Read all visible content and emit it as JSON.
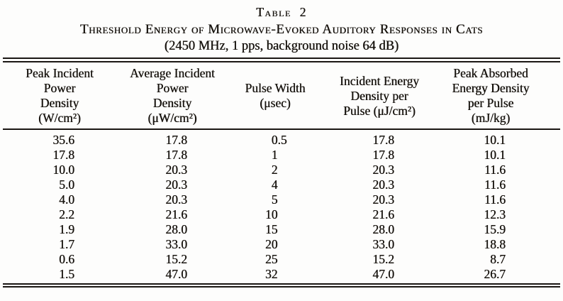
{
  "caption": {
    "label": "Table 2",
    "title": "Threshold Energy of Microwave-Evoked Auditory Responses in Cats",
    "conditions": "(2450 MHz, 1 pps, background noise 64 dB)"
  },
  "table": {
    "columns": [
      {
        "name": "peak-incident-power-density",
        "lines": [
          "Peak Incident",
          "Power",
          "Density",
          "(W/cm²)"
        ]
      },
      {
        "name": "average-incident-power-density",
        "lines": [
          "Average Incident",
          "Power",
          "Density",
          "(μW/cm²)"
        ]
      },
      {
        "name": "pulse-width",
        "lines": [
          "Pulse Width",
          "(μsec)"
        ]
      },
      {
        "name": "incident-energy-density-per-pulse",
        "lines": [
          "Incident Energy",
          "Density per",
          "Pulse (μJ/cm²)"
        ]
      },
      {
        "name": "peak-absorbed-energy-density-per-pulse",
        "lines": [
          "Peak Absorbed",
          "Energy Density",
          "per Pulse",
          "(mJ/kg)"
        ]
      }
    ],
    "rows": [
      [
        "35.6",
        "17.8",
        "0.5",
        "17.8",
        "10.1"
      ],
      [
        "17.8",
        "17.8",
        "1",
        "17.8",
        "10.1"
      ],
      [
        "10.0",
        "20.3",
        "2",
        "20.3",
        "11.6"
      ],
      [
        "5.0",
        "20.3",
        "4",
        "20.3",
        "11.6"
      ],
      [
        "4.0",
        "20.3",
        "5",
        "20.3",
        "11.6"
      ],
      [
        "2.2",
        "21.6",
        "10",
        "21.6",
        "12.3"
      ],
      [
        "1.9",
        "28.0",
        "15",
        "28.0",
        "15.9"
      ],
      [
        "1.7",
        "33.0",
        "20",
        "33.0",
        "18.8"
      ],
      [
        "0.6",
        "15.2",
        "25",
        "15.2",
        "8.7"
      ],
      [
        "1.5",
        "47.0",
        "32",
        "47.0",
        "26.7"
      ]
    ]
  },
  "colors": {
    "background": "#fdfdfc",
    "text": "#17130e",
    "rule": "#1a1613"
  }
}
